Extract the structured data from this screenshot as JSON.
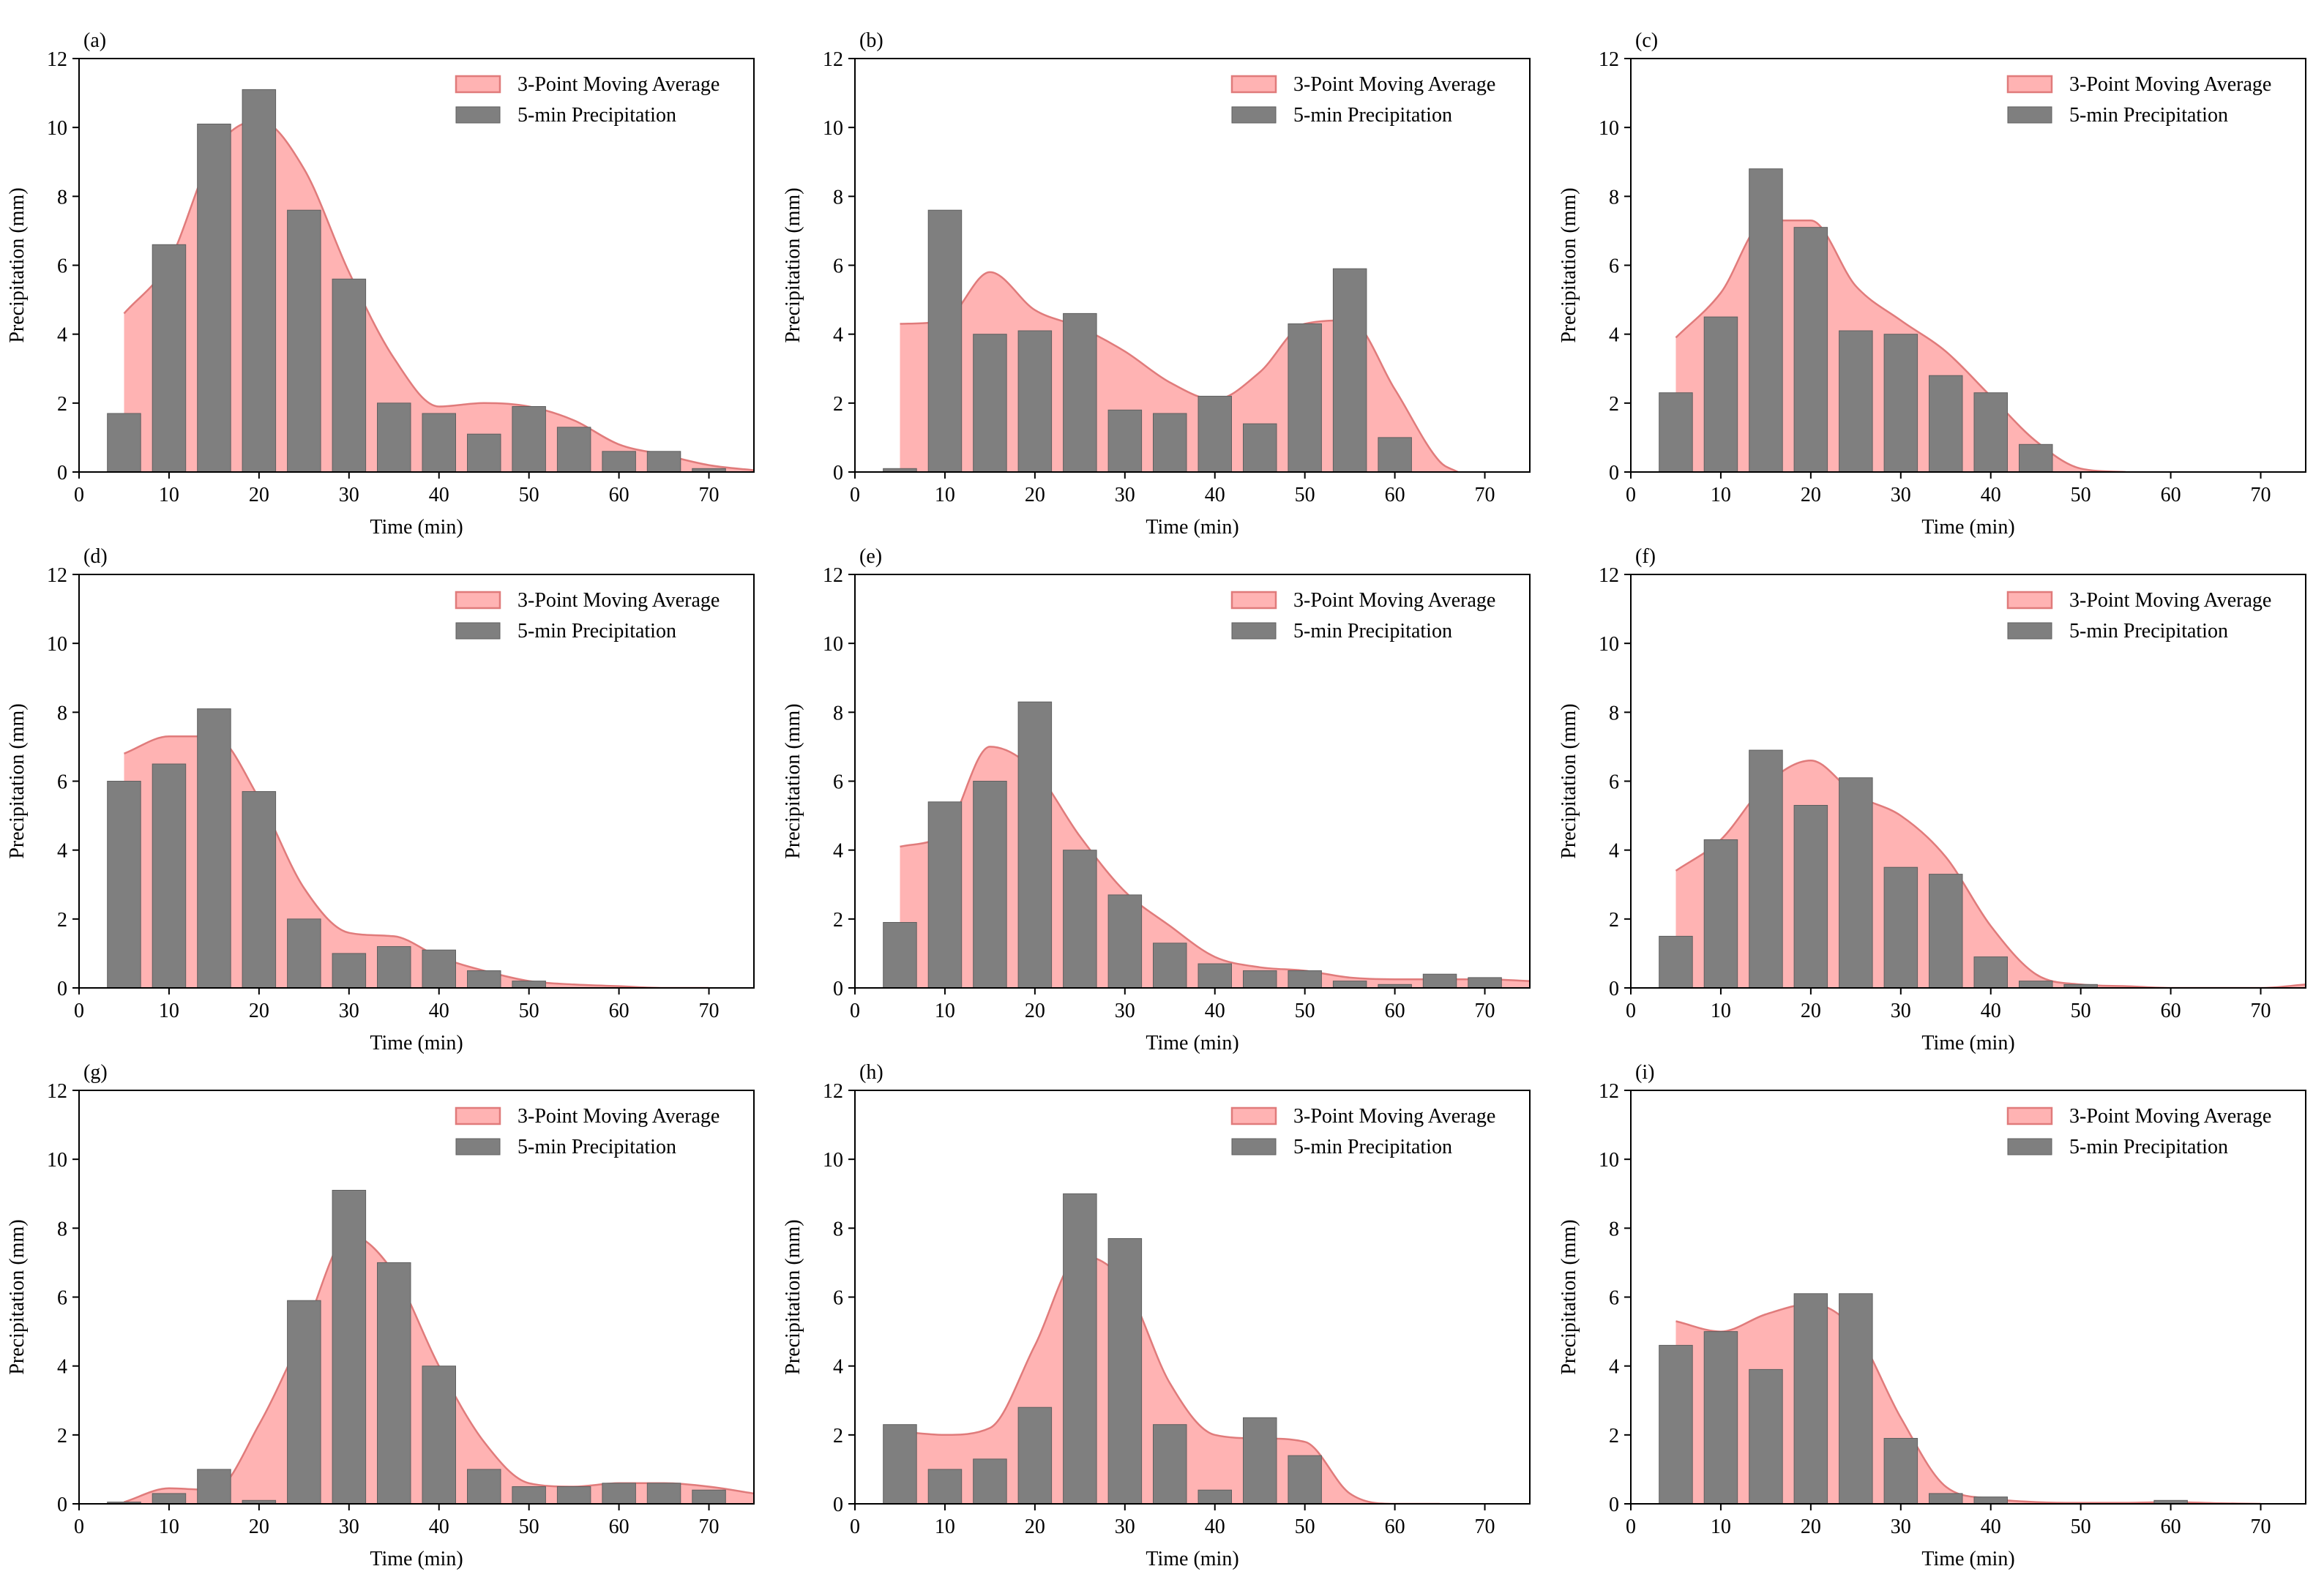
{
  "figure": {
    "x_axis_label": "Time (min)",
    "y_axis_label": "Precipitation (mm)",
    "legend": {
      "area_label": "3-Point Moving Average",
      "bar_label": "5-min Precipitation"
    },
    "x_ticks": [
      0,
      10,
      20,
      30,
      40,
      50,
      60,
      70
    ],
    "y_ticks": [
      0,
      2,
      4,
      6,
      8,
      10,
      12
    ]
  },
  "colors": {
    "bar_fill": "#7f7f7f",
    "bar_edge": "#5f5f5f",
    "area_fill": "#ffb3b3",
    "area_edge": "#e07b7b"
  },
  "chart_data": [
    {
      "type": "bar",
      "panel_label": "(a)",
      "xlabel": "Time (min)",
      "ylabel": "Precipitation (mm)",
      "xlim": [
        0,
        75
      ],
      "ylim": [
        0,
        12
      ],
      "grid": false,
      "legend_position": "top-right",
      "series": [
        {
          "name": "5-min Precipitation",
          "kind": "bar",
          "x": [
            5,
            10,
            15,
            20,
            25,
            30,
            35,
            40,
            45,
            50,
            55,
            60,
            65,
            70
          ],
          "values": [
            1.7,
            6.6,
            10.1,
            11.1,
            7.6,
            5.6,
            2.0,
            1.7,
            1.1,
            1.9,
            1.3,
            0.6,
            0.6,
            0.1
          ]
        },
        {
          "name": "3-Point Moving Average",
          "kind": "area",
          "x": [
            5,
            10,
            15,
            20,
            25,
            30,
            35,
            40,
            45,
            50,
            55,
            60,
            65,
            70,
            75
          ],
          "values": [
            4.6,
            6.1,
            9.3,
            10.2,
            8.8,
            5.8,
            3.3,
            1.9,
            2.0,
            1.9,
            1.5,
            0.8,
            0.5,
            0.2,
            0.05
          ]
        }
      ]
    },
    {
      "type": "bar",
      "panel_label": "(b)",
      "xlabel": "Time (min)",
      "ylabel": "Precipitation (mm)",
      "xlim": [
        0,
        75
      ],
      "ylim": [
        0,
        12
      ],
      "grid": false,
      "legend_position": "top-right",
      "series": [
        {
          "name": "5-min Precipitation",
          "kind": "bar",
          "x": [
            5,
            10,
            15,
            20,
            25,
            30,
            35,
            40,
            45,
            50,
            55,
            60
          ],
          "values": [
            0.1,
            7.6,
            4.0,
            4.1,
            4.6,
            1.8,
            1.7,
            2.2,
            1.4,
            4.3,
            5.9,
            1.0
          ]
        },
        {
          "name": "3-Point Moving Average",
          "kind": "area",
          "x": [
            5,
            10,
            15,
            20,
            25,
            30,
            35,
            40,
            45,
            50,
            55,
            60,
            65,
            67
          ],
          "values": [
            4.3,
            4.4,
            5.8,
            4.7,
            4.2,
            3.5,
            2.6,
            2.1,
            2.9,
            4.3,
            4.4,
            2.4,
            0.3,
            0.0
          ]
        }
      ]
    },
    {
      "type": "bar",
      "panel_label": "(c)",
      "xlabel": "Time (min)",
      "ylabel": "Precipitation (mm)",
      "xlim": [
        0,
        75
      ],
      "ylim": [
        0,
        12
      ],
      "grid": false,
      "legend_position": "top-right",
      "series": [
        {
          "name": "5-min Precipitation",
          "kind": "bar",
          "x": [
            5,
            10,
            15,
            20,
            25,
            30,
            35,
            40,
            45
          ],
          "values": [
            2.3,
            4.5,
            8.8,
            7.1,
            4.1,
            4.0,
            2.8,
            2.3,
            0.8
          ]
        },
        {
          "name": "3-Point Moving Average",
          "kind": "area",
          "x": [
            5,
            10,
            15,
            20,
            25,
            30,
            35,
            40,
            45,
            50,
            55
          ],
          "values": [
            3.9,
            5.2,
            7.3,
            7.3,
            5.4,
            4.4,
            3.5,
            2.2,
            0.9,
            0.1,
            0.0
          ]
        }
      ]
    },
    {
      "type": "bar",
      "panel_label": "(d)",
      "xlabel": "Time (min)",
      "ylabel": "Precipitation (mm)",
      "xlim": [
        0,
        75
      ],
      "ylim": [
        0,
        12
      ],
      "grid": false,
      "legend_position": "top-right",
      "series": [
        {
          "name": "5-min Precipitation",
          "kind": "bar",
          "x": [
            5,
            10,
            15,
            20,
            25,
            30,
            35,
            40,
            45,
            50
          ],
          "values": [
            6.0,
            6.5,
            8.1,
            5.7,
            2.0,
            1.0,
            1.2,
            1.1,
            0.5,
            0.2
          ]
        },
        {
          "name": "3-Point Moving Average",
          "kind": "area",
          "x": [
            5,
            10,
            15,
            20,
            25,
            30,
            35,
            40,
            45,
            50,
            55,
            60,
            65,
            70
          ],
          "values": [
            6.8,
            7.3,
            7.3,
            5.5,
            2.9,
            1.6,
            1.5,
            0.9,
            0.5,
            0.2,
            0.1,
            0.05,
            0.0,
            0.0
          ]
        }
      ]
    },
    {
      "type": "bar",
      "panel_label": "(e)",
      "xlabel": "Time (min)",
      "ylabel": "Precipitation (mm)",
      "xlim": [
        0,
        75
      ],
      "ylim": [
        0,
        12
      ],
      "grid": false,
      "legend_position": "top-right",
      "series": [
        {
          "name": "5-min Precipitation",
          "kind": "bar",
          "x": [
            5,
            10,
            15,
            20,
            25,
            30,
            35,
            40,
            45,
            50,
            55,
            60,
            65,
            70
          ],
          "values": [
            1.9,
            5.4,
            6.0,
            8.3,
            4.0,
            2.7,
            1.3,
            0.7,
            0.5,
            0.5,
            0.2,
            0.1,
            0.4,
            0.3
          ]
        },
        {
          "name": "3-Point Moving Average",
          "kind": "area",
          "x": [
            5,
            10,
            15,
            20,
            25,
            30,
            35,
            40,
            45,
            50,
            55,
            60,
            65,
            70,
            75
          ],
          "values": [
            4.1,
            4.5,
            7.0,
            6.3,
            4.4,
            2.8,
            1.8,
            0.9,
            0.6,
            0.5,
            0.3,
            0.25,
            0.25,
            0.25,
            0.2
          ]
        }
      ]
    },
    {
      "type": "bar",
      "panel_label": "(f)",
      "xlabel": "Time (min)",
      "ylabel": "Precipitation (mm)",
      "xlim": [
        0,
        75
      ],
      "ylim": [
        0,
        12
      ],
      "grid": false,
      "legend_position": "top-right",
      "series": [
        {
          "name": "5-min Precipitation",
          "kind": "bar",
          "x": [
            5,
            10,
            15,
            20,
            25,
            30,
            35,
            40,
            45,
            50
          ],
          "values": [
            1.5,
            4.3,
            6.9,
            5.3,
            6.1,
            3.5,
            3.3,
            0.9,
            0.2,
            0.1
          ]
        },
        {
          "name": "3-Point Moving Average",
          "kind": "area",
          "x": [
            5,
            10,
            15,
            20,
            25,
            30,
            35,
            40,
            45,
            50,
            55,
            60,
            65,
            70,
            75
          ],
          "values": [
            3.4,
            4.3,
            5.9,
            6.6,
            5.6,
            5.0,
            3.8,
            1.8,
            0.4,
            0.1,
            0.05,
            0.0,
            0.0,
            0.0,
            0.1
          ]
        }
      ]
    },
    {
      "type": "bar",
      "panel_label": "(g)",
      "xlabel": "Time (min)",
      "ylabel": "Precipitation (mm)",
      "xlim": [
        0,
        75
      ],
      "ylim": [
        0,
        12
      ],
      "grid": false,
      "legend_position": "top-right",
      "series": [
        {
          "name": "5-min Precipitation",
          "kind": "bar",
          "x": [
            5,
            10,
            15,
            20,
            25,
            30,
            35,
            40,
            45,
            50,
            55,
            60,
            65,
            70
          ],
          "values": [
            0.05,
            0.3,
            1.0,
            0.1,
            5.9,
            9.1,
            7.0,
            4.0,
            1.0,
            0.5,
            0.5,
            0.6,
            0.6,
            0.4
          ]
        },
        {
          "name": "3-Point Moving Average",
          "kind": "area",
          "x": [
            5,
            10,
            15,
            20,
            25,
            30,
            35,
            40,
            45,
            50,
            55,
            60,
            65,
            70,
            75
          ],
          "values": [
            0.05,
            0.45,
            0.4,
            2.3,
            5.0,
            7.8,
            6.7,
            4.0,
            1.8,
            0.6,
            0.5,
            0.6,
            0.6,
            0.5,
            0.3
          ]
        }
      ]
    },
    {
      "type": "bar",
      "panel_label": "(h)",
      "xlabel": "Time (min)",
      "ylabel": "Precipitation (mm)",
      "xlim": [
        0,
        75
      ],
      "ylim": [
        0,
        12
      ],
      "grid": false,
      "legend_position": "top-right",
      "series": [
        {
          "name": "5-min Precipitation",
          "kind": "bar",
          "x": [
            5,
            10,
            15,
            20,
            25,
            30,
            35,
            40,
            45,
            50
          ],
          "values": [
            2.3,
            1.0,
            1.3,
            2.8,
            9.0,
            7.7,
            2.3,
            0.4,
            2.5,
            1.4
          ]
        },
        {
          "name": "3-Point Moving Average",
          "kind": "area",
          "x": [
            5,
            10,
            15,
            20,
            25,
            30,
            35,
            40,
            45,
            50,
            55,
            60,
            65
          ],
          "values": [
            2.1,
            2.0,
            2.2,
            4.6,
            7.2,
            6.4,
            3.5,
            2.0,
            1.9,
            1.8,
            0.3,
            0.0,
            0.0
          ]
        }
      ]
    },
    {
      "type": "bar",
      "panel_label": "(i)",
      "xlabel": "Time (min)",
      "ylabel": "Precipitation (mm)",
      "xlim": [
        0,
        75
      ],
      "ylim": [
        0,
        12
      ],
      "grid": false,
      "legend_position": "top-right",
      "series": [
        {
          "name": "5-min Precipitation",
          "kind": "bar",
          "x": [
            5,
            10,
            15,
            20,
            25,
            30,
            35,
            40,
            60
          ],
          "values": [
            4.6,
            5.0,
            3.9,
            6.1,
            6.1,
            1.9,
            0.3,
            0.2,
            0.1
          ]
        },
        {
          "name": "3-Point Moving Average",
          "kind": "area",
          "x": [
            5,
            10,
            15,
            20,
            25,
            30,
            35,
            40,
            45,
            50,
            55,
            60,
            65,
            70
          ],
          "values": [
            5.3,
            5.0,
            5.5,
            5.8,
            5.0,
            2.5,
            0.5,
            0.15,
            0.05,
            0.03,
            0.03,
            0.05,
            0.02,
            0.0
          ]
        }
      ]
    }
  ]
}
